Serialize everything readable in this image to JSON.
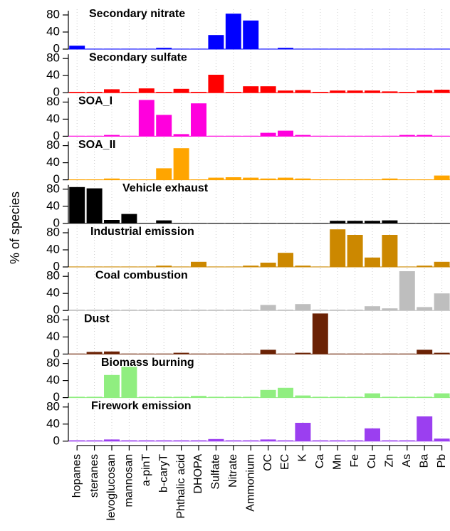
{
  "ylabel": "% of species",
  "categories": [
    "hopanes",
    "steranes",
    "levoglucosan",
    "mannosan",
    "a-pinT",
    "b-caryT",
    "Phthalic acid",
    "DHOPA",
    "Sulfate",
    "Nitrate",
    "Ammonium",
    "OC",
    "EC",
    "K",
    "Ca",
    "Mn",
    "Fe",
    "Cu",
    "Zn",
    "As",
    "Ba",
    "Pb"
  ],
  "chart_data": [
    {
      "type": "bar",
      "title": "Secondary nitrate",
      "color": "#0000ff",
      "ylim": [
        0,
        90
      ],
      "yticks": [
        0,
        40,
        80
      ],
      "values": [
        8,
        1,
        1,
        1,
        1,
        3,
        1,
        1,
        33,
        83,
        67,
        1,
        3,
        1,
        1,
        1,
        1,
        1,
        1,
        1,
        1,
        1
      ]
    },
    {
      "type": "bar",
      "title": "Secondary sulfate",
      "color": "#ff0000",
      "ylim": [
        0,
        90
      ],
      "yticks": [
        0,
        40,
        80
      ],
      "values": [
        2,
        2,
        8,
        2,
        10,
        2,
        9,
        2,
        42,
        2,
        15,
        15,
        5,
        6,
        2,
        5,
        5,
        5,
        3,
        2,
        5,
        7
      ]
    },
    {
      "type": "bar",
      "title": "SOA_I",
      "color": "#ff00dd",
      "ylim": [
        0,
        90
      ],
      "yticks": [
        0,
        40,
        80
      ],
      "values": [
        1,
        1,
        3,
        1,
        85,
        50,
        5,
        77,
        1,
        1,
        1,
        8,
        13,
        3,
        1,
        1,
        1,
        1,
        1,
        3,
        3,
        1
      ]
    },
    {
      "type": "bar",
      "title": "SOA_II",
      "color": "#ffa500",
      "ylim": [
        0,
        90
      ],
      "yticks": [
        0,
        40,
        80
      ],
      "values": [
        1,
        1,
        3,
        1,
        1,
        27,
        74,
        1,
        5,
        6,
        5,
        3,
        5,
        3,
        1,
        1,
        1,
        1,
        3,
        1,
        1,
        10
      ]
    },
    {
      "type": "bar",
      "title": "Vehicle exhaust",
      "color": "#000000",
      "ylim": [
        0,
        90
      ],
      "yticks": [
        0,
        40,
        80
      ],
      "values": [
        85,
        82,
        8,
        22,
        1,
        7,
        1,
        1,
        1,
        1,
        1,
        1,
        1,
        1,
        1,
        6,
        6,
        6,
        7,
        1,
        1,
        1
      ]
    },
    {
      "type": "bar",
      "title": "Industrial emission",
      "color": "#cc8800",
      "ylim": [
        0,
        90
      ],
      "yticks": [
        0,
        40,
        80
      ],
      "values": [
        1,
        1,
        1,
        1,
        1,
        3,
        1,
        12,
        1,
        1,
        3,
        10,
        33,
        3,
        1,
        88,
        75,
        22,
        75,
        1,
        3,
        12
      ]
    },
    {
      "type": "bar",
      "title": "Coal combustion",
      "color": "#bebebe",
      "ylim": [
        0,
        90
      ],
      "yticks": [
        0,
        40,
        80
      ],
      "values": [
        2,
        2,
        2,
        2,
        2,
        2,
        2,
        2,
        2,
        2,
        2,
        13,
        2,
        15,
        2,
        2,
        2,
        10,
        5,
        92,
        8,
        40
      ]
    },
    {
      "type": "bar",
      "title": "Dust",
      "color": "#6b2205",
      "ylim": [
        0,
        90
      ],
      "yticks": [
        0,
        40,
        80
      ],
      "values": [
        1,
        5,
        6,
        1,
        1,
        1,
        3,
        1,
        1,
        1,
        1,
        10,
        1,
        3,
        95,
        1,
        1,
        1,
        1,
        1,
        10,
        3
      ]
    },
    {
      "type": "bar",
      "title": "Biomass burning",
      "color": "#90ee80",
      "ylim": [
        0,
        90
      ],
      "yticks": [
        0,
        40,
        80
      ],
      "values": [
        2,
        2,
        53,
        72,
        2,
        2,
        2,
        4,
        2,
        2,
        2,
        18,
        23,
        5,
        2,
        2,
        2,
        10,
        2,
        2,
        2,
        10
      ]
    },
    {
      "type": "bar",
      "title": "Firework emission",
      "color": "#9b3ff0",
      "ylim": [
        0,
        90
      ],
      "yticks": [
        0,
        40,
        80
      ],
      "values": [
        2,
        2,
        4,
        2,
        2,
        2,
        2,
        2,
        5,
        2,
        2,
        4,
        2,
        43,
        2,
        2,
        2,
        30,
        2,
        2,
        58,
        6
      ]
    }
  ]
}
